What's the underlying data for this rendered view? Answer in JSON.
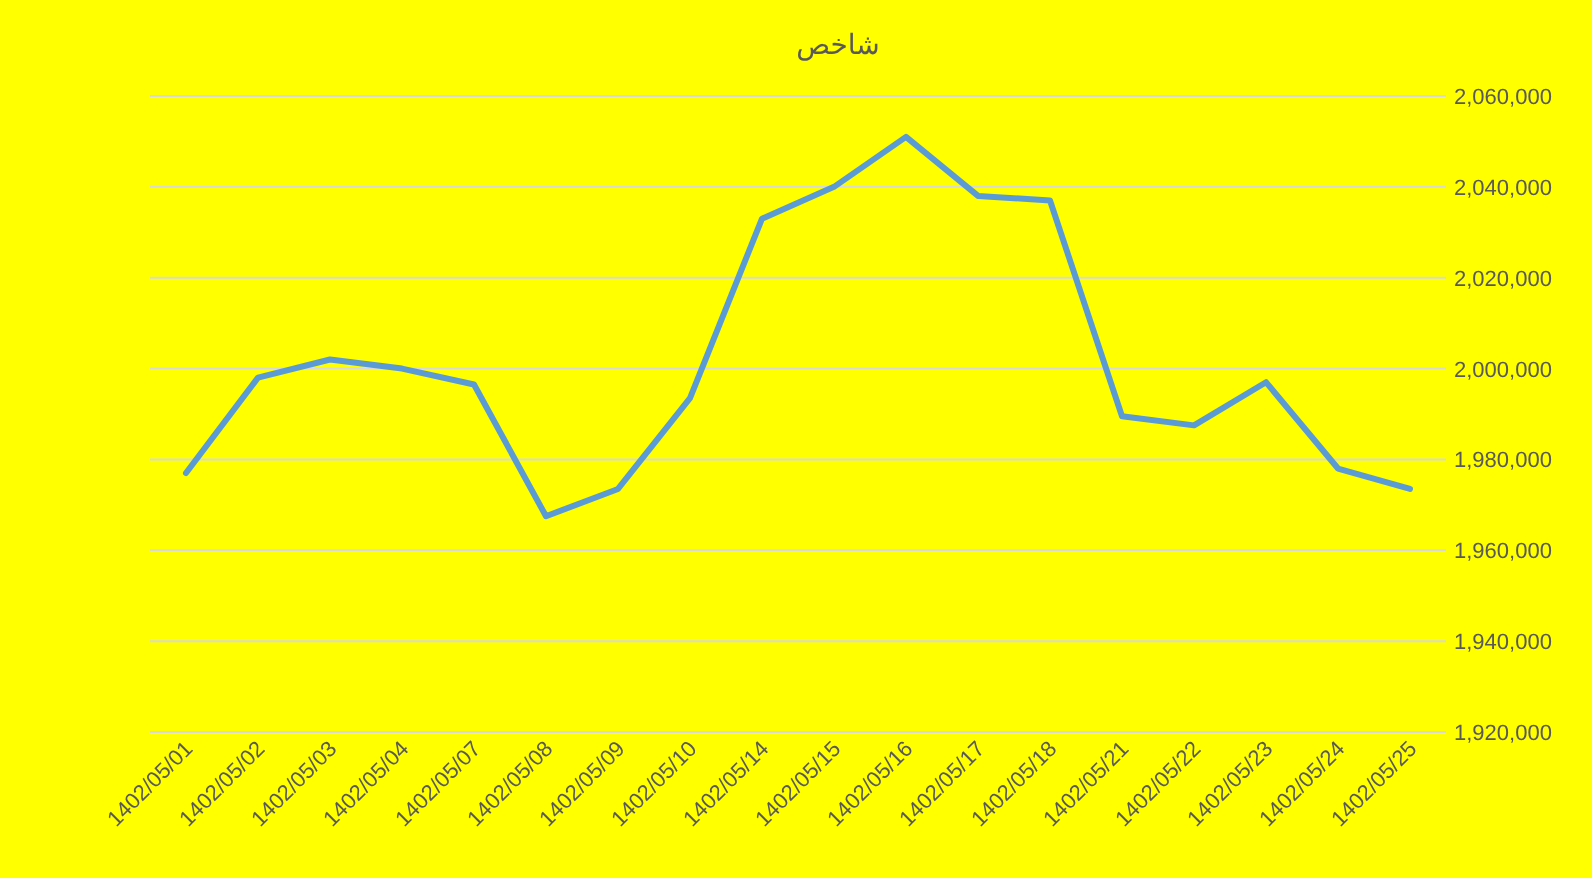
{
  "chart_data": {
    "type": "line",
    "title": "شاخص",
    "categories": [
      "1402/05/01",
      "1402/05/02",
      "1402/05/03",
      "1402/05/04",
      "1402/05/07",
      "1402/05/08",
      "1402/05/09",
      "1402/05/10",
      "1402/05/14",
      "1402/05/15",
      "1402/05/16",
      "1402/05/17",
      "1402/05/18",
      "1402/05/21",
      "1402/05/22",
      "1402/05/23",
      "1402/05/24",
      "1402/05/25"
    ],
    "series": [
      {
        "color": "#5b9bd5",
        "values": [
          1977000,
          1998000,
          2002000,
          2000000,
          1996500,
          1967500,
          1973500,
          1993500,
          2033000,
          2040000,
          2051000,
          2038000,
          2037000,
          1989500,
          1987500,
          1997000,
          1978000,
          1973500
        ]
      }
    ],
    "ylim": [
      1920000,
      2060000
    ],
    "yticks": [
      {
        "value": 1920000,
        "label": "1,920,000"
      },
      {
        "value": 1940000,
        "label": "1,940,000"
      },
      {
        "value": 1960000,
        "label": "1,960,000"
      },
      {
        "value": 1980000,
        "label": "1,980,000"
      },
      {
        "value": 2000000,
        "label": "2,000,000"
      },
      {
        "value": 2020000,
        "label": "2,020,000"
      },
      {
        "value": 2040000,
        "label": "2,040,000"
      },
      {
        "value": 2060000,
        "label": "2,060,000"
      }
    ],
    "grid": "y",
    "marker": "none",
    "line_style": "solid"
  }
}
